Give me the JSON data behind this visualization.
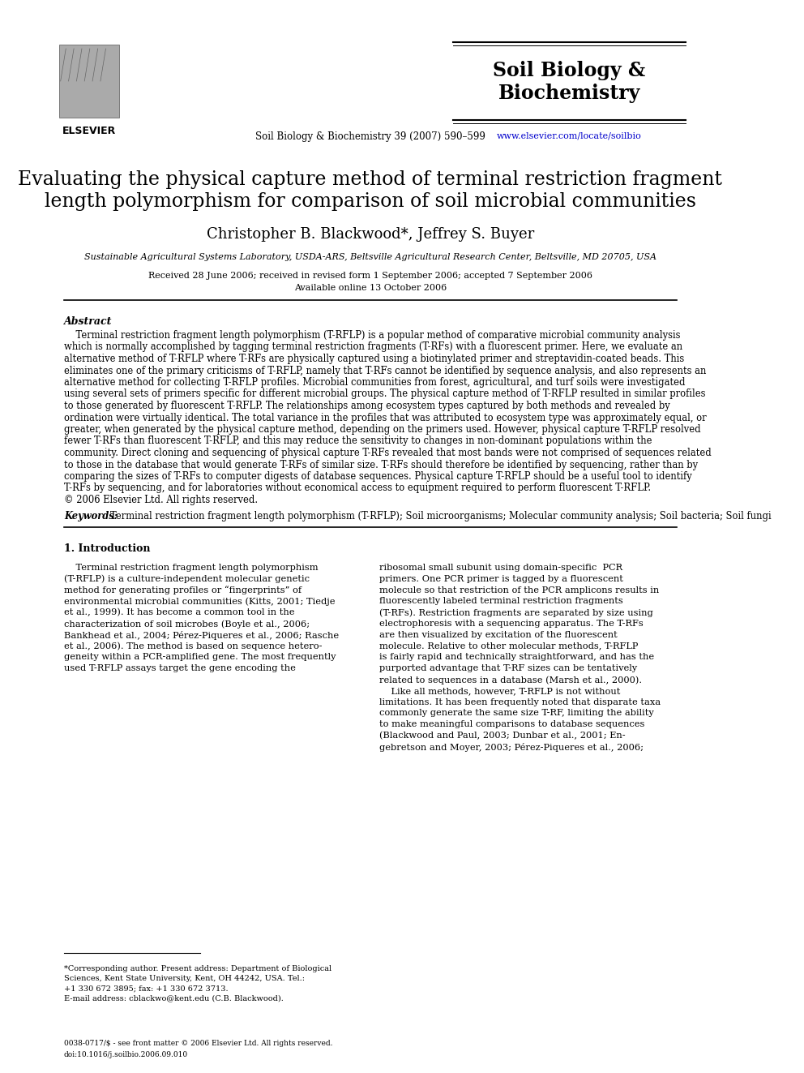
{
  "bg_color": "#ffffff",
  "journal_name": "Soil Biology &\nBiochemistry",
  "journal_name_color": "#000000",
  "publisher": "ELSEVIER",
  "journal_line": "Soil Biology & Biochemistry 39 (2007) 590–599",
  "website": "www.elsevier.com/locate/soilbio",
  "website_color": "#0000cc",
  "article_title_line1": "Evaluating the physical capture method of terminal restriction fragment",
  "article_title_line2": "length polymorphism for comparison of soil microbial communities",
  "authors": "Christopher B. Blackwood*, Jeffrey S. Buyer",
  "affiliation": "Sustainable Agricultural Systems Laboratory, USDA-ARS, Beltsville Agricultural Research Center, Beltsville, MD 20705, USA",
  "received": "Received 28 June 2006; received in revised form 1 September 2006; accepted 7 September 2006",
  "available": "Available online 13 October 2006",
  "abstract_label": "Abstract",
  "abstract_text": "Terminal restriction fragment length polymorphism (T-RFLP) is a popular method of comparative microbial community analysis which is normally accomplished by tagging terminal restriction fragments (T-RFs) with a fluorescent primer. Here, we evaluate an alternative method of T-RFLP where T-RFs are physically captured using a biotinylated primer and streptavidin-coated beads. This eliminates one of the primary criticisms of T-RFLP, namely that T-RFs cannot be identified by sequence analysis, and also represents an alternative method for collecting T-RFLP profiles. Microbial communities from forest, agricultural, and turf soils were investigated using several sets of primers specific for different microbial groups. The physical capture method of T-RFLP resulted in similar profiles to those generated by fluorescent T-RFLP. The relationships among ecosystem types captured by both methods and revealed by ordination were virtually identical. The total variance in the profiles that was attributed to ecosystem type was approximately equal, or greater, when generated by the physical capture method, depending on the primers used. However, physical capture T-RFLP resolved fewer T-RFs than fluorescent T-RFLP, and this may reduce the sensitivity to changes in non-dominant populations within the community. Direct cloning and sequencing of physical capture T-RFs revealed that most bands were not comprised of sequences related to those in the database that would generate T-RFs of similar size. T-RFs should therefore be identified by sequencing, rather than by comparing the sizes of T-RFs to computer digests of database sequences. Physical capture T-RFLP should be a useful tool to identify T-RFs by sequencing, and for laboratories without economical access to equipment required to perform fluorescent T-RFLP.\n© 2006 Elsevier Ltd. All rights reserved.",
  "keywords_label": "Keywords:",
  "keywords_text": "Terminal restriction fragment length polymorphism (T-RFLP); Soil microorganisms; Molecular community analysis; Soil bacteria; Soil fungi",
  "section1_label": "1. Introduction",
  "section1_left_text": "Terminal restriction fragment length polymorphism (T-RFLP) is a culture-independent molecular genetic method for generating profiles or “fingerprints” of environmental microbial communities (Kitts, 2001; Tiedje et al., 1999). It has become a common tool in the characterization of soil microbes (Boyle et al., 2006; Bankhead et al., 2004; Pérez-Piqueres et al., 2006; Rasche et al., 2006). The method is based on sequence heterogeneity within a PCR-amplified gene. The most frequently used T-RFLP assays target the gene encoding the",
  "section1_right_text": "ribosomal small subunit using domain-specific PCR primers. One PCR primer is tagged by a fluorescent molecule so that restriction of the PCR amplicons results in fluorescently labeled terminal restriction fragments (T-RFs). Restriction fragments are separated by size using electrophoresis with a sequencing apparatus. The T-RFs are then visualized by excitation of the fluorescent molecule. Relative to other molecular methods, T-RFLP is fairly rapid and technically straightforward, and has the purported advantage that T-RF sizes can be tentatively related to sequences in a database (Marsh et al., 2000).\n    Like all methods, however, T-RFLP is not without limitations. It has been frequently noted that disparate taxa commonly generate the same size T-RF, limiting the ability to make meaningful comparisons to database sequences (Blackwood and Paul, 2003; Dunbar et al., 2001; Engebretson and Moyer, 2003; Pérez-Piqueres et al., 2006;",
  "footnote_star": "*Corresponding author. Present address: Department of Biological Sciences, Kent State University, Kent, OH 44242, USA. Tel.: +1 330 672 3895; fax: +1 330 672 3713.",
  "footnote_email": "E-mail address: cblackwo@kent.edu (C.B. Blackwood).",
  "footer_line1": "0038-0717/$ - see front matter © 2006 Elsevier Ltd. All rights reserved.",
  "footer_line2": "doi:10.1016/j.soilbio.2006.09.010",
  "link_color": "#0000cc"
}
